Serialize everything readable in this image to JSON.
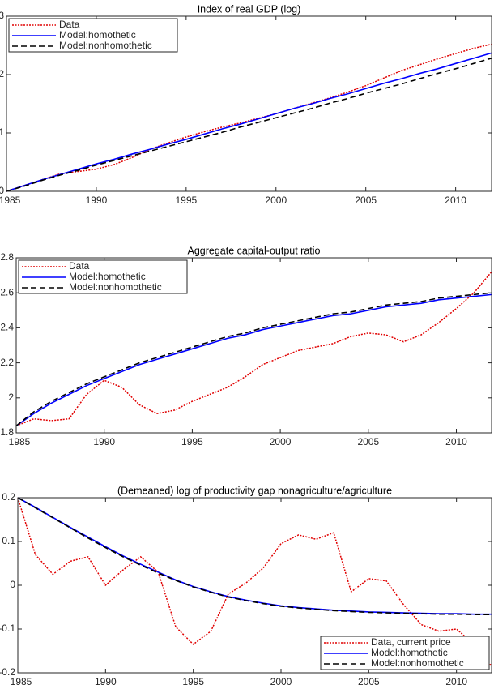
{
  "chart_data": [
    {
      "type": "line",
      "title": "Index of real GDP (log)",
      "x": [
        1985,
        1986,
        1987,
        1988,
        1989,
        1990,
        1991,
        1992,
        1993,
        1994,
        1995,
        1996,
        1997,
        1998,
        1999,
        2000,
        2001,
        2002,
        2003,
        2004,
        2005,
        2006,
        2007,
        2008,
        2009,
        2010,
        2011,
        2012
      ],
      "xlim": [
        1985,
        2012
      ],
      "xticks": [
        1985,
        1990,
        1995,
        2000,
        2005,
        2010
      ],
      "ylim": [
        0,
        3
      ],
      "yticks": [
        0,
        1,
        2,
        3
      ],
      "legend": "upper left",
      "series": [
        {
          "name": "Data",
          "color": "#e00000",
          "style": "dotted",
          "values": [
            0,
            0.1,
            0.2,
            0.3,
            0.34,
            0.38,
            0.46,
            0.58,
            0.72,
            0.83,
            0.93,
            1.02,
            1.1,
            1.17,
            1.25,
            1.33,
            1.42,
            1.51,
            1.6,
            1.7,
            1.81,
            1.94,
            2.07,
            2.17,
            2.27,
            2.36,
            2.45,
            2.52
          ]
        },
        {
          "name": "Model:homothetic",
          "color": "#0000ff",
          "style": "solid",
          "values": [
            0,
            0.1,
            0.2,
            0.29,
            0.38,
            0.47,
            0.55,
            0.64,
            0.72,
            0.81,
            0.89,
            0.98,
            1.07,
            1.15,
            1.24,
            1.33,
            1.42,
            1.5,
            1.59,
            1.67,
            1.76,
            1.85,
            1.93,
            2.02,
            2.1,
            2.19,
            2.28,
            2.37
          ]
        },
        {
          "name": "Model:nonhomothetic",
          "color": "#000000",
          "style": "dashed",
          "values": [
            0,
            0.09,
            0.19,
            0.28,
            0.36,
            0.45,
            0.53,
            0.61,
            0.69,
            0.77,
            0.85,
            0.93,
            1.01,
            1.1,
            1.18,
            1.26,
            1.34,
            1.42,
            1.51,
            1.59,
            1.68,
            1.76,
            1.84,
            1.93,
            2.02,
            2.1,
            2.19,
            2.28
          ]
        }
      ]
    },
    {
      "type": "line",
      "title": "Aggregate capital-output ratio",
      "x": [
        1985,
        1986,
        1987,
        1988,
        1989,
        1990,
        1991,
        1992,
        1993,
        1994,
        1995,
        1996,
        1997,
        1998,
        1999,
        2000,
        2001,
        2002,
        2003,
        2004,
        2005,
        2006,
        2007,
        2008,
        2009,
        2010,
        2011,
        2012
      ],
      "xlim": [
        1985,
        2012
      ],
      "xticks": [
        1985,
        1990,
        1995,
        2000,
        2005,
        2010
      ],
      "ylim": [
        1.8,
        2.8
      ],
      "yticks": [
        1.8,
        2,
        2.2,
        2.4,
        2.6,
        2.8
      ],
      "legend": "upper left",
      "series": [
        {
          "name": "Data",
          "color": "#e00000",
          "style": "dotted",
          "values": [
            1.84,
            1.88,
            1.87,
            1.88,
            2.02,
            2.1,
            2.06,
            1.96,
            1.91,
            1.93,
            1.98,
            2.02,
            2.06,
            2.12,
            2.19,
            2.23,
            2.27,
            2.29,
            2.31,
            2.35,
            2.37,
            2.36,
            2.32,
            2.36,
            2.43,
            2.51,
            2.6,
            2.72
          ]
        },
        {
          "name": "Model:homothetic",
          "color": "#0000ff",
          "style": "solid",
          "values": [
            1.84,
            1.91,
            1.97,
            2.02,
            2.07,
            2.11,
            2.15,
            2.19,
            2.22,
            2.25,
            2.28,
            2.31,
            2.34,
            2.36,
            2.39,
            2.41,
            2.43,
            2.45,
            2.47,
            2.48,
            2.5,
            2.52,
            2.53,
            2.54,
            2.56,
            2.57,
            2.58,
            2.59
          ]
        },
        {
          "name": "Model:nonhomothetic",
          "color": "#000000",
          "style": "dashed",
          "values": [
            1.84,
            1.92,
            1.98,
            2.03,
            2.08,
            2.12,
            2.16,
            2.2,
            2.23,
            2.26,
            2.29,
            2.32,
            2.35,
            2.37,
            2.4,
            2.42,
            2.44,
            2.46,
            2.48,
            2.49,
            2.51,
            2.53,
            2.54,
            2.55,
            2.57,
            2.58,
            2.59,
            2.6
          ]
        }
      ]
    },
    {
      "type": "line",
      "title": "(Demeaned) log of productivity gap nonagriculture/agriculture",
      "x": [
        1985,
        1986,
        1987,
        1988,
        1989,
        1990,
        1991,
        1992,
        1993,
        1994,
        1995,
        1996,
        1997,
        1998,
        1999,
        2000,
        2001,
        2002,
        2003,
        2004,
        2005,
        2006,
        2007,
        2008,
        2009,
        2010,
        2011,
        2012
      ],
      "xlim": [
        1985,
        2012
      ],
      "xticks": [
        1985,
        1990,
        1995,
        2000,
        2005,
        2010
      ],
      "ylim": [
        -0.2,
        0.2
      ],
      "yticks": [
        -0.2,
        -0.1,
        0,
        0.1,
        0.2
      ],
      "legend": "lower right",
      "series": [
        {
          "name": "Data, current price",
          "color": "#e00000",
          "style": "dotted",
          "values": [
            0.2,
            0.07,
            0.025,
            0.055,
            0.065,
            0,
            0.035,
            0.065,
            0.03,
            -0.095,
            -0.135,
            -0.105,
            -0.02,
            0.005,
            0.04,
            0.095,
            0.115,
            0.105,
            0.12,
            -0.015,
            0.015,
            0.01,
            -0.045,
            -0.09,
            -0.105,
            -0.1,
            -0.135,
            -0.185
          ]
        },
        {
          "name": "Model:homothetic",
          "color": "#0000ff",
          "style": "solid",
          "values": [
            0.2,
            0.178,
            0.155,
            0.132,
            0.11,
            0.088,
            0.067,
            0.048,
            0.03,
            0.012,
            -0.003,
            -0.015,
            -0.026,
            -0.034,
            -0.041,
            -0.047,
            -0.051,
            -0.054,
            -0.057,
            -0.059,
            -0.061,
            -0.062,
            -0.063,
            -0.064,
            -0.065,
            -0.065,
            -0.066,
            -0.066
          ]
        },
        {
          "name": "Model:nonhomothetic",
          "color": "#000000",
          "style": "dashed",
          "values": [
            0.2,
            0.177,
            0.154,
            0.131,
            0.108,
            0.086,
            0.065,
            0.046,
            0.028,
            0.011,
            -0.004,
            -0.016,
            -0.027,
            -0.035,
            -0.042,
            -0.048,
            -0.052,
            -0.055,
            -0.058,
            -0.06,
            -0.062,
            -0.063,
            -0.064,
            -0.065,
            -0.066,
            -0.066,
            -0.067,
            -0.067
          ]
        }
      ]
    }
  ]
}
